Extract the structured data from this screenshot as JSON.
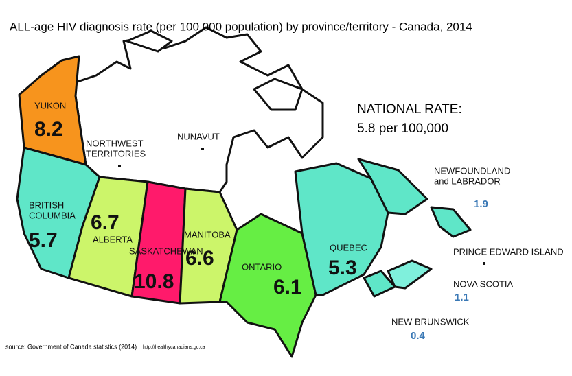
{
  "title": "ALL-age HIV diagnosis rate (per 100,000 population) by province/territory - Canada, 2014",
  "national": {
    "label": "NATIONAL RATE:",
    "value": "5.8 per 100,000"
  },
  "regions": [
    {
      "name": [
        "YUKON"
      ],
      "value": 8.2
    },
    {
      "name": [
        "NORTHWEST",
        "TERRITORIES"
      ]
    },
    {
      "name": [
        "NUNAVUT"
      ]
    },
    {
      "name": [
        "BRITISH",
        "COLUMBIA"
      ],
      "value": 5.7
    },
    {
      "name": [
        "ALBERTA"
      ],
      "value": 6.7
    },
    {
      "name": [
        "SASKATCHEWAN"
      ],
      "value": 10.8
    },
    {
      "name": [
        "MANITOBA"
      ],
      "value": 6.6
    },
    {
      "name": [
        "ONTARIO"
      ],
      "value": 6.1
    },
    {
      "name": [
        "QUEBEC"
      ],
      "value": 5.3
    },
    {
      "name": [
        "NEWFOUNDLAND",
        "and LABRADOR"
      ],
      "value": 1.9
    },
    {
      "name": [
        "PRINCE EDWARD ISLAND"
      ]
    },
    {
      "name": [
        "NOVA SCOTIA"
      ],
      "value": 1.1
    },
    {
      "name": [
        "NEW BRUNSWICK"
      ],
      "value": 0.4
    }
  ],
  "source": {
    "text": "source: Government of Canada statistics (2014)",
    "url": "http://healthycanadians.gc.ca"
  }
}
